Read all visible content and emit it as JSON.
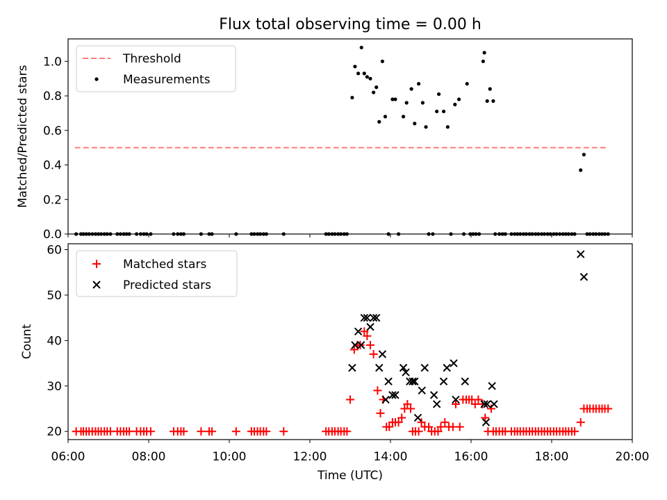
{
  "figure": {
    "title": "Flux total observing time = 0.00 h"
  },
  "chart_data": [
    {
      "type": "scatter",
      "ylabel": "Matched/Predicted stars",
      "xlim": [
        6.0,
        20.0
      ],
      "ylim": [
        0.0,
        1.13
      ],
      "yticks": [
        0.0,
        0.2,
        0.4,
        0.6,
        0.8,
        1.0
      ],
      "ytick_labels": [
        "0.0",
        "0.2",
        "0.4",
        "0.6",
        "0.8",
        "1.0"
      ],
      "legend_position": "top-left",
      "threshold": {
        "name": "Threshold",
        "color": "#ff7b7b",
        "x": [
          6.17,
          19.4
        ],
        "y": 0.5
      },
      "series": [
        {
          "name": "Measurements",
          "marker": "dot",
          "color": "#000000",
          "x": [
            6.2,
            6.32,
            6.38,
            6.45,
            6.52,
            6.6,
            6.68,
            6.75,
            6.82,
            6.9,
            6.97,
            7.05,
            7.22,
            7.3,
            7.38,
            7.45,
            7.52,
            7.7,
            7.8,
            7.88,
            7.95,
            8.05,
            8.62,
            8.72,
            8.8,
            8.87,
            9.3,
            9.5,
            9.57,
            10.17,
            10.55,
            10.62,
            10.7,
            10.77,
            10.85,
            10.92,
            11.35,
            12.4,
            12.47,
            12.55,
            12.62,
            12.7,
            12.77,
            12.85,
            12.92,
            13.05,
            13.12,
            13.2,
            13.28,
            13.35,
            13.42,
            13.5,
            13.58,
            13.65,
            13.72,
            13.8,
            13.87,
            13.95,
            14.05,
            14.12,
            14.2,
            14.32,
            14.4,
            14.52,
            14.6,
            14.7,
            14.8,
            14.88,
            14.95,
            15.05,
            15.15,
            15.2,
            15.32,
            15.42,
            15.5,
            15.6,
            15.7,
            15.82,
            15.9,
            15.98,
            16.05,
            16.12,
            16.2,
            16.3,
            16.33,
            16.4,
            16.47,
            16.55,
            16.6,
            16.7,
            16.78,
            16.85,
            17.0,
            17.08,
            17.15,
            17.22,
            17.3,
            17.37,
            17.45,
            17.52,
            17.6,
            17.67,
            17.75,
            17.82,
            17.9,
            17.97,
            18.05,
            18.12,
            18.2,
            18.28,
            18.35,
            18.42,
            18.5,
            18.57,
            18.72,
            18.8,
            18.88,
            18.95,
            19.03,
            19.1,
            19.18,
            19.25,
            19.32,
            19.4
          ],
          "y": [
            0,
            0,
            0,
            0,
            0,
            0,
            0,
            0,
            0,
            0,
            0,
            0,
            0,
            0,
            0,
            0,
            0,
            0,
            0,
            0,
            0,
            0,
            0,
            0,
            0,
            0,
            0,
            0,
            0,
            0,
            0,
            0,
            0,
            0,
            0,
            0,
            0,
            0,
            0,
            0,
            0,
            0,
            0,
            0,
            0,
            0.79,
            0.97,
            0.93,
            1.08,
            0.93,
            0.91,
            0.9,
            0.82,
            0.85,
            0.65,
            1.0,
            0.68,
            0,
            0.78,
            0.78,
            0,
            0.68,
            0.76,
            0.84,
            0.64,
            0.87,
            0.76,
            0.62,
            0,
            0,
            0.71,
            0.81,
            0.71,
            0.62,
            0,
            0.75,
            0.78,
            0,
            0.87,
            0,
            0,
            0,
            0,
            1.0,
            1.05,
            0.77,
            0.84,
            0.77,
            0,
            0,
            0,
            0,
            0,
            0,
            0,
            0,
            0,
            0,
            0,
            0,
            0,
            0,
            0,
            0,
            0,
            0,
            0,
            0,
            0,
            0,
            0,
            0,
            0,
            0,
            0.37,
            0.46,
            0,
            0,
            0,
            0,
            0,
            0,
            0,
            0
          ]
        }
      ]
    },
    {
      "type": "scatter",
      "xlabel": "Time (UTC)",
      "ylabel": "Count",
      "xlim": [
        6.0,
        20.0
      ],
      "ylim": [
        18.2,
        61.3
      ],
      "yticks": [
        20,
        30,
        40,
        50,
        60
      ],
      "ytick_labels": [
        "20",
        "30",
        "40",
        "50",
        "60"
      ],
      "xticks": [
        6,
        8,
        10,
        12,
        14,
        16,
        18,
        20
      ],
      "xtick_labels": [
        "06:00",
        "08:00",
        "10:00",
        "12:00",
        "14:00",
        "16:00",
        "18:00",
        "20:00"
      ],
      "legend_position": "top-left",
      "series": [
        {
          "name": "Matched stars",
          "marker": "plus",
          "color": "#ff0000",
          "x": [
            6.2,
            6.32,
            6.38,
            6.45,
            6.52,
            6.6,
            6.68,
            6.75,
            6.82,
            6.9,
            6.97,
            7.05,
            7.22,
            7.3,
            7.38,
            7.45,
            7.52,
            7.7,
            7.8,
            7.88,
            7.95,
            8.05,
            8.62,
            8.72,
            8.8,
            8.87,
            9.3,
            9.5,
            9.57,
            10.17,
            10.55,
            10.62,
            10.7,
            10.77,
            10.85,
            10.92,
            11.35,
            12.4,
            12.47,
            12.55,
            12.62,
            12.7,
            12.77,
            12.85,
            12.92,
            13.0,
            13.1,
            13.18,
            13.25,
            13.35,
            13.42,
            13.5,
            13.58,
            13.68,
            13.75,
            13.82,
            13.9,
            13.97,
            14.05,
            14.12,
            14.2,
            14.28,
            14.35,
            14.42,
            14.5,
            14.55,
            14.62,
            14.7,
            14.77,
            14.85,
            14.95,
            15.02,
            15.1,
            15.18,
            15.25,
            15.35,
            15.45,
            15.55,
            15.62,
            15.72,
            15.8,
            15.88,
            15.95,
            16.02,
            16.1,
            16.18,
            16.28,
            16.35,
            16.42,
            16.5,
            16.55,
            16.62,
            16.7,
            16.78,
            16.85,
            17.0,
            17.08,
            17.15,
            17.22,
            17.3,
            17.37,
            17.45,
            17.52,
            17.6,
            17.67,
            17.75,
            17.82,
            17.9,
            17.97,
            18.05,
            18.12,
            18.2,
            18.28,
            18.35,
            18.42,
            18.5,
            18.57,
            18.72,
            18.8,
            18.88,
            18.95,
            19.03,
            19.1,
            19.18,
            19.25,
            19.32,
            19.4
          ],
          "y": [
            20,
            20,
            20,
            20,
            20,
            20,
            20,
            20,
            20,
            20,
            20,
            20,
            20,
            20,
            20,
            20,
            20,
            20,
            20,
            20,
            20,
            20,
            20,
            20,
            20,
            20,
            20,
            20,
            20,
            20,
            20,
            20,
            20,
            20,
            20,
            20,
            20,
            20,
            20,
            20,
            20,
            20,
            20,
            20,
            20,
            27,
            38,
            39,
            39,
            42,
            41,
            39,
            37,
            29,
            24,
            27,
            21,
            21,
            22,
            22,
            22,
            23,
            25,
            26,
            25,
            20,
            20,
            20,
            22,
            21,
            21,
            20,
            20,
            20,
            21,
            22,
            21,
            21,
            26,
            21,
            27,
            27,
            27,
            27,
            26,
            27,
            26,
            23,
            20,
            25,
            20,
            20,
            20,
            20,
            20,
            20,
            20,
            20,
            20,
            20,
            20,
            20,
            20,
            20,
            20,
            20,
            20,
            20,
            20,
            20,
            20,
            20,
            20,
            20,
            20,
            20,
            20,
            22,
            25,
            25,
            25,
            25,
            25,
            25,
            25,
            25,
            25
          ]
        },
        {
          "name": "Predicted stars",
          "marker": "cross",
          "color": "#000000",
          "x": [
            13.05,
            13.12,
            13.2,
            13.27,
            13.35,
            13.42,
            13.5,
            13.58,
            13.65,
            13.72,
            13.8,
            13.88,
            13.95,
            14.05,
            14.12,
            14.32,
            14.38,
            14.48,
            14.55,
            14.6,
            14.68,
            14.78,
            14.85,
            15.08,
            15.15,
            15.32,
            15.4,
            15.57,
            15.62,
            15.85,
            16.33,
            16.37,
            16.4,
            16.52,
            16.57
          ],
          "y": [
            34,
            39,
            42,
            39,
            45,
            45,
            43,
            45,
            45,
            34,
            37,
            27,
            31,
            28,
            28,
            34,
            33,
            31,
            31,
            31,
            23,
            29,
            34,
            28,
            26,
            31,
            34,
            35,
            27,
            31,
            26,
            22,
            26,
            30,
            26
          ]
        },
        {
          "name": "",
          "marker": "cross",
          "color": "#000000",
          "x": [
            18.72,
            18.8
          ],
          "y": [
            59,
            54
          ]
        }
      ]
    }
  ],
  "legend": {
    "top": [
      "Threshold",
      "Measurements"
    ],
    "bottom": [
      "Matched stars",
      "Predicted stars"
    ]
  }
}
